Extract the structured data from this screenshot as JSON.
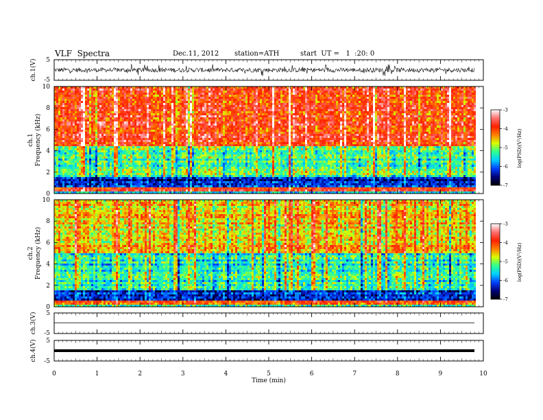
{
  "header": {
    "title": "VLF  Spectra",
    "date": "Dec.11, 2012",
    "station": "station=ATH",
    "start_ut": "start  UT =   1  :20: 0"
  },
  "chart_data": [
    {
      "type": "line",
      "panel": "ch1-waveform",
      "ylabel": "ch.1(V)",
      "ylim": [
        -5,
        5
      ],
      "yticks": [
        "5",
        "-5"
      ],
      "xlim": [
        0,
        10
      ],
      "data_end_min": 9.8,
      "signal": "noisy broadband waveform, amplitude roughly within ±1.5 V with spikes"
    },
    {
      "type": "heatmap",
      "panel": "ch1-spectrogram",
      "ylabel_channel": "ch.1",
      "ylabel": "Frequency  (kHz)",
      "ylim": [
        0,
        10
      ],
      "yticks": [
        "0",
        "2",
        "4",
        "6",
        "8",
        "10"
      ],
      "xlim": [
        0,
        10
      ],
      "data_end_min": 9.8,
      "colorbar": {
        "label": "log(PSD)(V²/Hz)",
        "ticks": [
          "-3",
          "-4",
          "-5",
          "-6",
          "-7"
        ],
        "range": [
          -7,
          -3
        ]
      },
      "bands": [
        {
          "from_khz": 4.5,
          "to_khz": 10,
          "dominant": "red/orange",
          "log_psd": -3.9
        },
        {
          "from_khz": 1.6,
          "to_khz": 4.5,
          "dominant": "green/cyan",
          "log_psd": -5.2
        },
        {
          "from_khz": 0.5,
          "to_khz": 1.6,
          "dominant": "blue/navy",
          "log_psd": -6.3
        },
        {
          "from_khz": 0.2,
          "to_khz": 0.5,
          "dominant": "red",
          "log_psd": -4.0
        },
        {
          "from_khz": 0.0,
          "to_khz": 0.2,
          "dominant": "green",
          "log_psd": -5.5
        }
      ]
    },
    {
      "type": "heatmap",
      "panel": "ch2-spectrogram",
      "ylabel_channel": "ch.2",
      "ylabel": "Frequency  (kHz)",
      "ylim": [
        0,
        10
      ],
      "yticks": [
        "0",
        "2",
        "4",
        "6",
        "8",
        "10"
      ],
      "xlim": [
        0,
        10
      ],
      "data_end_min": 9.8,
      "colorbar": {
        "label": "log(PSD)(V²/Hz)",
        "ticks": [
          "-3",
          "-4",
          "-5",
          "-6",
          "-7"
        ],
        "range": [
          -7,
          -3
        ]
      },
      "bands": [
        {
          "from_khz": 5.0,
          "to_khz": 10,
          "dominant": "yellow/green",
          "log_psd": -4.6
        },
        {
          "from_khz": 1.6,
          "to_khz": 5.0,
          "dominant": "green/cyan",
          "log_psd": -5.4
        },
        {
          "from_khz": 0.5,
          "to_khz": 1.6,
          "dominant": "blue",
          "log_psd": -6.2
        },
        {
          "from_khz": 0.2,
          "to_khz": 0.5,
          "dominant": "red",
          "log_psd": -4.0
        },
        {
          "from_khz": 0.0,
          "to_khz": 0.2,
          "dominant": "green",
          "log_psd": -5.5
        }
      ]
    },
    {
      "type": "line",
      "panel": "ch3-waveform",
      "ylabel": "ch.3(V)",
      "ylim": [
        -5,
        5
      ],
      "yticks": [
        "5",
        "-5"
      ],
      "xlim": [
        0,
        10
      ],
      "data_end_min": 9.8,
      "signal": "flat trace near 0 V"
    },
    {
      "type": "line",
      "panel": "ch4-waveform",
      "ylabel": "ch.4(V)",
      "ylim": [
        -5,
        5
      ],
      "yticks": [
        "5",
        "-5"
      ],
      "xlim": [
        0,
        10
      ],
      "data_end_min": 9.8,
      "signal": "thick flat trace near 0 V"
    }
  ],
  "xaxis": {
    "label": "Time  (min)",
    "ticks": [
      "0",
      "1",
      "2",
      "3",
      "4",
      "5",
      "6",
      "7",
      "8",
      "9",
      "10"
    ]
  },
  "palette": {
    "jet_stops": [
      "#000000",
      "#00007a",
      "#0040ff",
      "#00d0ff",
      "#30ff90",
      "#d8ff00",
      "#ff8000",
      "#ff2000",
      "#ff7070",
      "#ffffff"
    ]
  }
}
